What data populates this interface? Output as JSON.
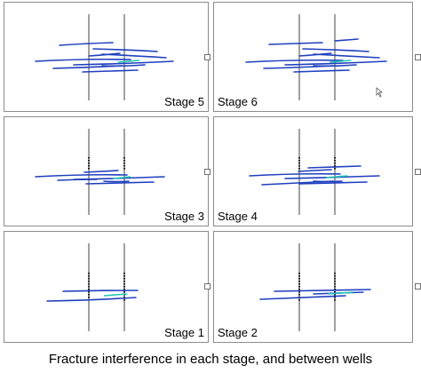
{
  "caption": "Fracture interference in each stage, and between wells",
  "colors": {
    "fracture": "#1f3fbf",
    "fracture_highlight": "#23c6b4",
    "well": "#6e6e6e",
    "border": "#8c8c8c"
  },
  "panels": [
    {
      "id": "stage5",
      "label": "Stage 5",
      "label_side": "right"
    },
    {
      "id": "stage6",
      "label": "Stage 6",
      "label_side": "left"
    },
    {
      "id": "stage3",
      "label": "Stage 3",
      "label_side": "right"
    },
    {
      "id": "stage4",
      "label": "Stage 4",
      "label_side": "left"
    },
    {
      "id": "stage1",
      "label": "Stage 1",
      "label_side": "right"
    },
    {
      "id": "stage2",
      "label": "Stage 2",
      "label_side": "left"
    }
  ]
}
